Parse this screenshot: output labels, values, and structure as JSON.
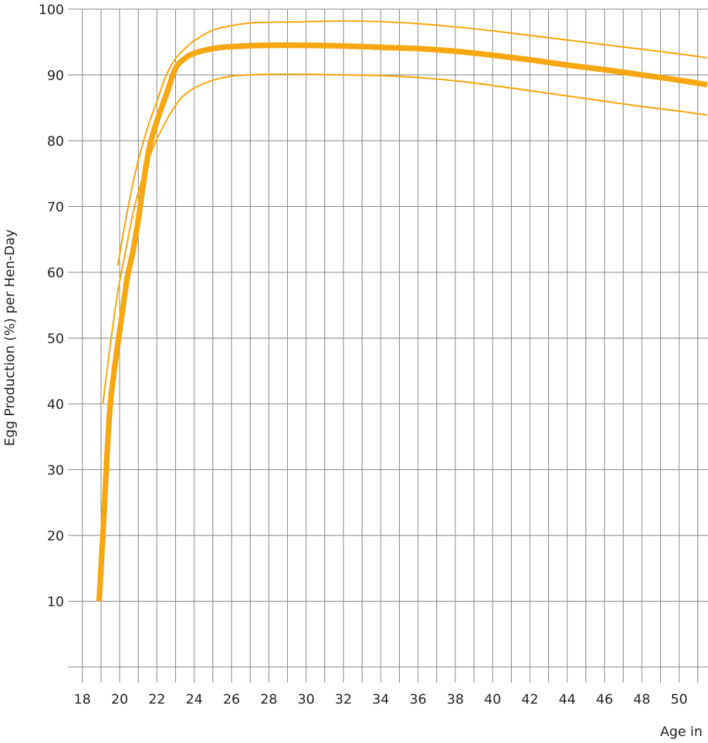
{
  "chart_data": {
    "type": "line",
    "title": "",
    "xlabel": "Age in",
    "ylabel": "Egg Production (%) per Hen-Day",
    "xlim": [
      17.5,
      51.5
    ],
    "ylim": [
      0,
      100
    ],
    "x_ticks": [
      18,
      20,
      22,
      24,
      26,
      28,
      30,
      32,
      34,
      36,
      38,
      40,
      42,
      44,
      46,
      48,
      50
    ],
    "x_tick_labels": [
      "18",
      "20",
      "22",
      "24",
      "26",
      "28",
      "30",
      "32",
      "34",
      "36",
      "38",
      "40",
      "42",
      "44",
      "46",
      "48",
      "50"
    ],
    "y_ticks": [
      10,
      20,
      30,
      40,
      50,
      60,
      70,
      80,
      90,
      100
    ],
    "y_tick_labels": [
      "10",
      "20",
      "30",
      "40",
      "50",
      "60",
      "70",
      "80",
      "90",
      "100"
    ],
    "grid": true,
    "legend": "none",
    "series": [
      {
        "role": "standard",
        "color": "#f6a712",
        "points": [
          [
            18.9,
            10
          ],
          [
            19.1,
            20
          ],
          [
            19.3,
            31
          ],
          [
            19.5,
            40
          ],
          [
            19.8,
            47
          ],
          [
            20.1,
            53
          ],
          [
            20.4,
            59
          ],
          [
            20.7,
            63
          ],
          [
            21.0,
            68
          ],
          [
            21.3,
            74
          ],
          [
            21.6,
            79
          ],
          [
            22.0,
            83
          ],
          [
            22.5,
            87
          ],
          [
            23.0,
            91
          ],
          [
            23.5,
            92.5
          ],
          [
            24.0,
            93.3
          ],
          [
            25.0,
            94
          ],
          [
            26.0,
            94.3
          ],
          [
            28.0,
            94.5
          ],
          [
            30.0,
            94.5
          ],
          [
            32.0,
            94.4
          ],
          [
            34.0,
            94.2
          ],
          [
            36.0,
            94.0
          ],
          [
            38.0,
            93.6
          ],
          [
            40.0,
            93.0
          ],
          [
            42.0,
            92.3
          ],
          [
            44.0,
            91.5
          ],
          [
            46.0,
            90.8
          ],
          [
            48.0,
            90.0
          ],
          [
            50.0,
            89.2
          ],
          [
            51.5,
            88.5
          ]
        ]
      },
      {
        "role": "upper-range",
        "color": "#f6a712",
        "points": [
          [
            19.9,
            61
          ],
          [
            20.2,
            66
          ],
          [
            20.6,
            72
          ],
          [
            21.0,
            77
          ],
          [
            21.5,
            82
          ],
          [
            22.0,
            86
          ],
          [
            22.5,
            90
          ],
          [
            23.0,
            92.5
          ],
          [
            23.5,
            94
          ],
          [
            24.0,
            95.2
          ],
          [
            25.0,
            96.8
          ],
          [
            26.0,
            97.5
          ],
          [
            27.0,
            97.9
          ],
          [
            28.0,
            98.0
          ],
          [
            30.0,
            98.1
          ],
          [
            32.0,
            98.2
          ],
          [
            34.0,
            98.1
          ],
          [
            36.0,
            97.8
          ],
          [
            38.0,
            97.3
          ],
          [
            40.0,
            96.7
          ],
          [
            42.0,
            96.0
          ],
          [
            44.0,
            95.3
          ],
          [
            46.0,
            94.6
          ],
          [
            48.0,
            93.9
          ],
          [
            50.0,
            93.2
          ],
          [
            51.5,
            92.6
          ]
        ]
      },
      {
        "role": "lower-range",
        "color": "#f6a712",
        "points": [
          [
            19.1,
            40
          ],
          [
            19.5,
            49
          ],
          [
            19.9,
            57
          ],
          [
            20.3,
            63
          ],
          [
            20.8,
            70
          ],
          [
            21.3,
            75
          ],
          [
            21.8,
            79
          ],
          [
            22.3,
            82
          ],
          [
            22.8,
            84.5
          ],
          [
            23.3,
            86.5
          ],
          [
            24.0,
            88
          ],
          [
            25.0,
            89.2
          ],
          [
            26.0,
            89.8
          ],
          [
            27.0,
            90
          ],
          [
            28.0,
            90.1
          ],
          [
            30.0,
            90.1
          ],
          [
            32.0,
            90
          ],
          [
            34.0,
            89.9
          ],
          [
            36.0,
            89.6
          ],
          [
            38.0,
            89.1
          ],
          [
            40.0,
            88.4
          ],
          [
            42.0,
            87.6
          ],
          [
            44.0,
            86.8
          ],
          [
            46.0,
            86.0
          ],
          [
            48.0,
            85.2
          ],
          [
            50.0,
            84.5
          ],
          [
            51.5,
            83.9
          ]
        ]
      }
    ]
  }
}
